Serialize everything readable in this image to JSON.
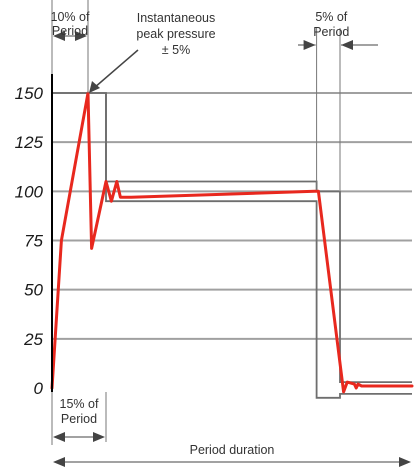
{
  "chart_data": {
    "type": "line",
    "title": "",
    "xlabel": "Period duration",
    "ylabel": "",
    "ylim": [
      0,
      150
    ],
    "yticks": [
      0,
      25,
      50,
      75,
      100,
      125,
      150
    ],
    "grid": true,
    "series": [
      {
        "x": [
          0,
          2.6,
          10,
          11,
          15,
          16.5,
          18,
          19,
          20,
          22,
          73,
          74,
          81,
          82,
          84,
          84.5,
          85,
          86,
          100
        ],
        "y": [
          0,
          75,
          150,
          71,
          105,
          95,
          105,
          97,
          97,
          97,
          100,
          100,
          -2,
          3,
          2,
          0,
          2,
          1,
          1
        ]
      }
    ],
    "envelope_upper": {
      "x": [
        0,
        15,
        15,
        73.5,
        73.5,
        80,
        80,
        100
      ],
      "y": [
        150,
        150,
        105,
        105,
        100,
        100,
        3,
        3
      ]
    },
    "envelope_lower": {
      "x": [
        15,
        15,
        73.5,
        73.5,
        80,
        80,
        100
      ],
      "y": [
        150,
        95,
        95,
        -5,
        -5,
        -3,
        -3
      ]
    },
    "annotations": {
      "ten_pct_top": "10% of",
      "ten_pct_bottom": "Period",
      "peak_line1": "Instantaneous",
      "peak_line2": "peak pressure",
      "peak_line3": "± 5%",
      "five_pct_top": "5% of",
      "five_pct_bottom": "Period",
      "fifteen_pct_top": "15% of",
      "fifteen_pct_bottom": "Period"
    },
    "colors": {
      "series": "#e8281e",
      "envelope": "#6e6e6e",
      "grid": "#a0a0a0",
      "axis": "#000000",
      "text": "#333333"
    }
  }
}
